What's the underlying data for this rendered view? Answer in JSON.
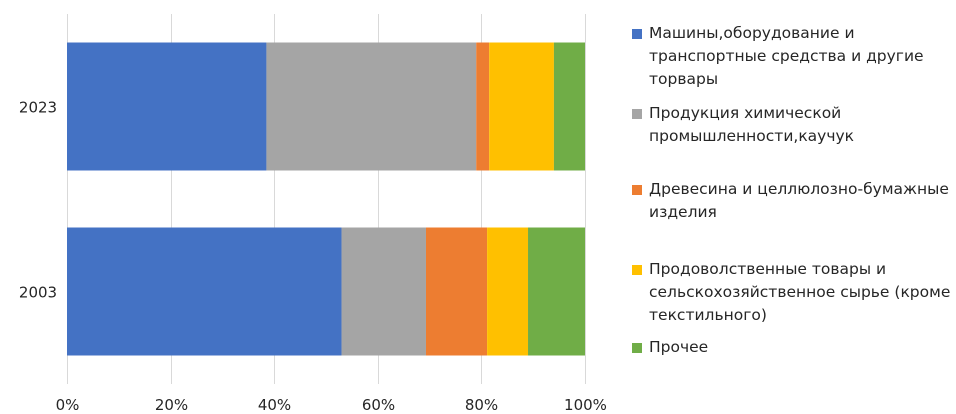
{
  "chart_data": {
    "type": "bar",
    "orientation": "horizontal",
    "stacked": "percent",
    "categories": [
      "2023",
      "2003"
    ],
    "series": [
      {
        "name": "Машины,оборудование и транспортные средства и другие торвары",
        "color": "#4472C4",
        "values": [
          38.5,
          53.0
        ]
      },
      {
        "name": "Продукция химической промышленности,каучук",
        "color": "#A5A5A5",
        "values": [
          40.5,
          16.3
        ]
      },
      {
        "name": "Древесина и целлюлозно-бумажные изделия",
        "color": "#ED7D31",
        "values": [
          2.5,
          11.8
        ]
      },
      {
        "name": "Продоволственные товары и сельскохозяйственное сырье (кроме текстильного)",
        "color": "#FFC000",
        "values": [
          12.5,
          7.9
        ]
      },
      {
        "name": "Прочее",
        "color": "#70AD47",
        "values": [
          6.0,
          11.0
        ]
      }
    ],
    "xlim": [
      0,
      100
    ],
    "x_ticks": [
      "0%",
      "20%",
      "40%",
      "60%",
      "80%",
      "100%"
    ],
    "grid": true,
    "legend_position": "right"
  }
}
